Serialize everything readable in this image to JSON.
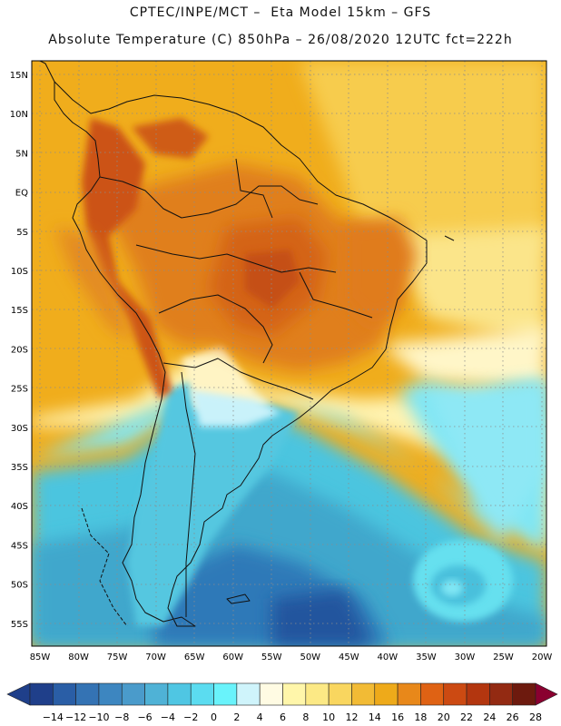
{
  "header": {
    "line1": "CPTEC/INPE/MCT –  Eta Model 15km – GFS",
    "line2": "Absolute Temperature (C) 850hPa – 26/08/2020 12UTC fct=222h"
  },
  "map": {
    "lat_labels": [
      "15N",
      "10N",
      "5N",
      "EQ",
      "5S",
      "10S",
      "15S",
      "20S",
      "25S",
      "30S",
      "35S",
      "40S",
      "45S",
      "50S",
      "55S"
    ],
    "lon_labels": [
      "85W",
      "80W",
      "75W",
      "70W",
      "65W",
      "60W",
      "55W",
      "50W",
      "45W",
      "40W",
      "35W",
      "30W",
      "25W",
      "20W"
    ]
  },
  "colorbar": {
    "ticks": [
      "-14",
      "-12",
      "-10",
      "-8",
      "-6",
      "-4",
      "-2",
      "0",
      "2",
      "4",
      "6",
      "8",
      "10",
      "12",
      "14",
      "16",
      "18",
      "20",
      "22",
      "24",
      "26",
      "28"
    ],
    "colors": [
      "#1f3f8a",
      "#2a5ea6",
      "#3473b4",
      "#3d86c0",
      "#4a9bcb",
      "#4fb2d6",
      "#4fc6e3",
      "#5bdcf0",
      "#69f3fb",
      "#cff4fb",
      "#fffbe3",
      "#fff6aa",
      "#fce985",
      "#f9d65f",
      "#f2bb35",
      "#eeaa1a",
      "#e8881a",
      "#df6214",
      "#cc4a12",
      "#b3360f",
      "#932a12",
      "#6d1a0e"
    ]
  }
}
